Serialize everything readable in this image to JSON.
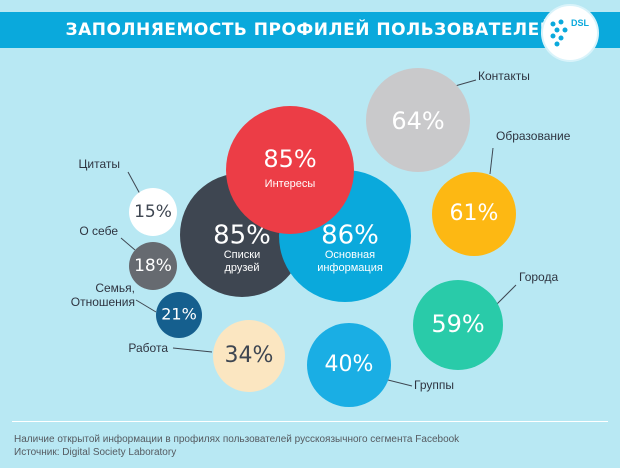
{
  "title": "ЗАПОЛНЯЕМОСТЬ ПРОФИЛЕЙ ПОЛЬЗОВАТЕЛЕЙ",
  "logo_text": "DSL",
  "footer": {
    "description": "Наличие открытой информации в профилях пользователей русскоязычного сегмента Facebook",
    "source": "Источник: Digital Society Laboratory"
  },
  "colors": {
    "background": "#b8e8f3",
    "header": "#0aa9dc"
  },
  "chart_data": {
    "type": "bubble",
    "title": "ЗАПОЛНЯЕМОСТЬ ПРОФИЛЕЙ ПОЛЬЗОВАТЕЛЕЙ",
    "unit": "%",
    "items": [
      {
        "label": "Интересы",
        "value": 85,
        "color": "#ec3d46"
      },
      {
        "label": "Списки друзей",
        "value": 85,
        "color": "#3e4651"
      },
      {
        "label": "Основная информация",
        "value": 86,
        "color": "#0aa9dc"
      },
      {
        "label": "Контакты",
        "value": 64,
        "color": "#c9c9cb"
      },
      {
        "label": "Образование",
        "value": 61,
        "color": "#fdb813"
      },
      {
        "label": "Города",
        "value": 59,
        "color": "#29cba9"
      },
      {
        "label": "Группы",
        "value": 40,
        "color": "#1aaee4"
      },
      {
        "label": "Работа",
        "value": 34,
        "color": "#fbe6c1"
      },
      {
        "label": "Цитаты",
        "value": 15,
        "color": "#ffffff"
      },
      {
        "label": "О себе",
        "value": 18,
        "color": "#666a70"
      },
      {
        "label": "Семья, Отношения",
        "value": 21,
        "color": "#155f8e"
      }
    ]
  }
}
